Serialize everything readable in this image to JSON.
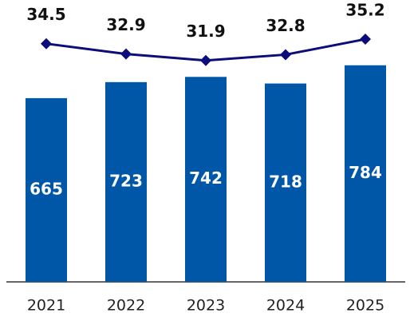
{
  "chart_data": {
    "type": "bar_line",
    "categories": [
      "2021",
      "2022",
      "2023",
      "2024",
      "2025"
    ],
    "series": [
      {
        "type": "bar",
        "color": "#0057a8",
        "values": [
          665,
          723,
          742,
          718,
          784
        ]
      },
      {
        "type": "line",
        "axis": "y2",
        "color": "#0c0c7a",
        "values": [
          34.5,
          32.9,
          31.9,
          32.8,
          35.2
        ]
      }
    ],
    "ylim": [
      0,
      1000
    ],
    "y2lim": [
      -2.4,
      40.4
    ]
  }
}
